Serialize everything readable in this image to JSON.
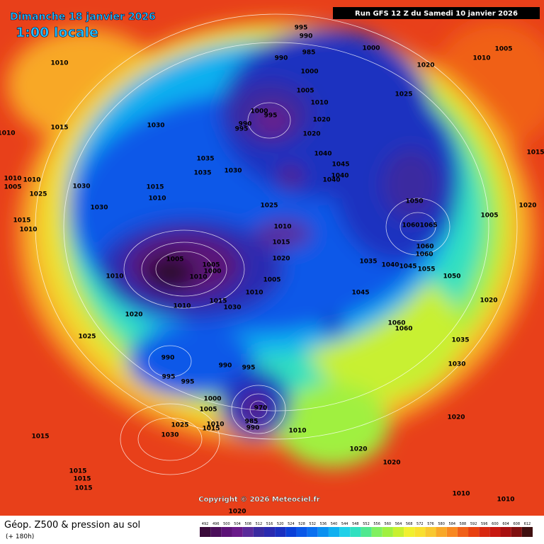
{
  "header": {
    "date": "Dimanche 18 janvier 2026",
    "time": "1:00 locale",
    "run": "Run GFS 12 Z du Samedi 10 janvier 2026"
  },
  "map": {
    "copyright": "Copyright © 2026 Meteociel.fr",
    "pressure_labels": [
      995,
      990,
      985,
      990,
      1000,
      1010,
      1005,
      1010,
      1020,
      1000,
      1005,
      1025,
      1010,
      1000,
      995,
      1020,
      990,
      995,
      1015,
      1030,
      1020,
      1010,
      1040,
      1035,
      1045,
      1015,
      1035,
      1030,
      1040,
      1040,
      1010,
      1010,
      1005,
      1030,
      1015,
      1025,
      1010,
      1050,
      1030,
      1025,
      1020,
      1015,
      1010,
      1060,
      1065,
      1010,
      1005,
      1015,
      1020,
      1060,
      1060,
      1005,
      1005,
      1000,
      1035,
      1040,
      1045,
      1055,
      1050,
      1010,
      1010,
      1005,
      1045,
      1010,
      1015,
      1030,
      1010,
      1020,
      1020,
      1060,
      1060,
      1025,
      1035,
      990,
      990,
      995,
      995,
      995,
      1030,
      1000,
      1005,
      970,
      985,
      990,
      1025,
      1010,
      1015,
      1010,
      1015,
      1030,
      1020,
      1020,
      1020,
      1015,
      1015,
      1015,
      1010,
      1010,
      1020
    ]
  },
  "footer": {
    "title": "Géop. Z500 & pression au sol",
    "lead": "(+ 180h)"
  },
  "scale": {
    "values": [
      492,
      496,
      500,
      504,
      508,
      512,
      516,
      520,
      524,
      528,
      532,
      536,
      540,
      544,
      548,
      552,
      556,
      560,
      564,
      568,
      572,
      576,
      580,
      584,
      588,
      592,
      596,
      600,
      604,
      608,
      612
    ],
    "colors": [
      "#3a0a3a",
      "#4b0e5a",
      "#5c1277",
      "#6a1a8a",
      "#5a2a9a",
      "#3a2aa0",
      "#2a2ab0",
      "#1a30c0",
      "#0a40d8",
      "#0a58e8",
      "#0a70f0",
      "#0a90f0",
      "#10b0f0",
      "#20d0e8",
      "#30e0c0",
      "#50e890",
      "#80f060",
      "#a0f040",
      "#c8f030",
      "#f0f030",
      "#f8e030",
      "#f8c830",
      "#f8a828",
      "#f88820",
      "#f06018",
      "#e84010",
      "#d82810",
      "#c81810",
      "#a81010",
      "#801010",
      "#401010"
    ]
  }
}
